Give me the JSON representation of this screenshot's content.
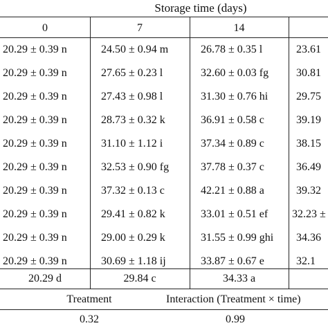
{
  "table": {
    "header_group": "Storage time (days)",
    "columns": [
      "0",
      "7",
      "14",
      ""
    ],
    "rows": [
      [
        "20.29 ± 0.39 n",
        "24.50 ± 0.94 m",
        "26.78 ± 0.35 l",
        "23.61"
      ],
      [
        "20.29 ± 0.39 n",
        "27.65 ± 0.23 l",
        "32.60 ± 0.03 fg",
        "30.81"
      ],
      [
        "20.29 ± 0.39 n",
        "27.43 ± 0.98 l",
        "31.30 ± 0.76 hi",
        "29.75"
      ],
      [
        "20.29 ± 0.39 n",
        "28.73 ± 0.32 k",
        "36.91 ± 0.58 c",
        "39.19"
      ],
      [
        "20.29 ± 0.39 n",
        "31.10 ± 1.12 i",
        "37.34 ± 0.89 c",
        "38.15"
      ],
      [
        "20.29 ± 0.39 n",
        "32.53 ± 0.90 fg",
        "37.78 ± 0.37 c",
        "36.49"
      ],
      [
        "20.29 ± 0.39 n",
        "37.32 ± 0.13 c",
        "42.21 ± 0.88 a",
        "39.32"
      ],
      [
        "20.29 ± 0.39 n",
        "29.41 ± 0.82 k",
        "33.01 ± 0.51 ef",
        "32.23 ±"
      ],
      [
        "20.29 ± 0.39 n",
        "29.00 ± 0.29 k",
        "31.55 ± 0.99 ghi",
        "34.36"
      ],
      [
        "20.29 ± 0.39 n",
        "30.69 ± 1.18 ij",
        "33.87 ± 0.67 e",
        "32.1"
      ]
    ],
    "means_row": [
      "20.29 d",
      "29.84 c",
      "34.33 a",
      ""
    ],
    "anova_headers": [
      "Treatment",
      "Interaction (Treatment × time)"
    ],
    "anova_values": [
      "0.32",
      "0.99"
    ]
  }
}
